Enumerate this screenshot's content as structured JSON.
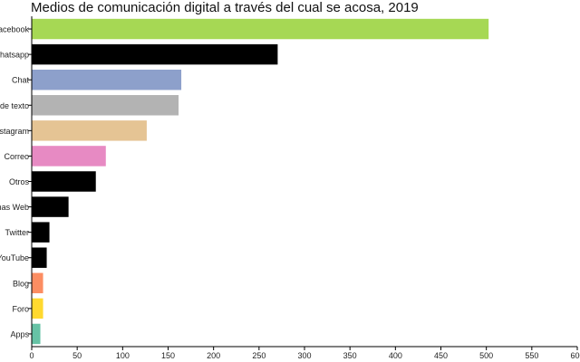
{
  "chart_data": {
    "type": "bar",
    "orientation": "horizontal",
    "title": "Medios de comunicación digital a través del cual se acosa, 2019",
    "xlabel": "",
    "ylabel": "",
    "categories": [
      "Facebook",
      "Whatsapp",
      "Chat",
      "Mensajes de texto",
      "Instagram",
      "Correo",
      "Otros",
      "Páginas Web",
      "Twitter",
      "YouTube",
      "Blog",
      "Foro",
      "Apps"
    ],
    "category_labels": [
      "Facebook",
      "Whatsapp",
      "Chat",
      "s de texto",
      "nstagram",
      "Correo",
      "Otros",
      "nas Web",
      "Twitter",
      "YouTube",
      "Blog",
      "Foro",
      "Apps"
    ],
    "values": [
      502,
      270,
      164,
      161,
      126,
      81,
      70,
      40,
      19,
      16,
      12,
      12,
      9
    ],
    "colors": [
      "#a6d854",
      "#000000",
      "#8da0cb",
      "#b3b3b3",
      "#e5c494",
      "#e78ac3",
      "#000000",
      "#000000",
      "#000000",
      "#000000",
      "#fc8d62",
      "#ffd92f",
      "#66c2a5"
    ],
    "xlim": [
      0,
      600
    ],
    "xticks": [
      0,
      50,
      100,
      150,
      200,
      250,
      300,
      350,
      400,
      450,
      500,
      550,
      600
    ],
    "grid": false,
    "legend": "none"
  }
}
